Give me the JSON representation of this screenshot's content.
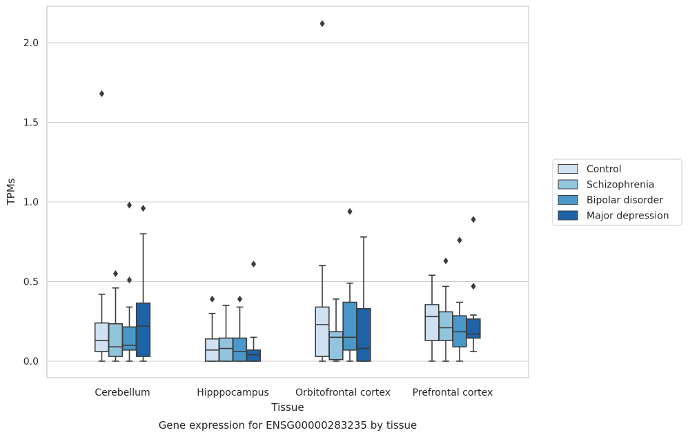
{
  "caption": "Gene expression for ENSG00000283235 by tissue",
  "chart_data": {
    "type": "box",
    "xlabel": "Tissue",
    "ylabel": "TPMs",
    "ylim": [
      -0.1,
      2.23
    ],
    "yticks": [
      0.0,
      0.5,
      1.0,
      1.5,
      2.0
    ],
    "ytick_labels": [
      "0.0",
      "0.5",
      "1.0",
      "1.5",
      "2.0"
    ],
    "grid": "horizontal",
    "legend_placement": "right",
    "categories": [
      "Cerebellum",
      "Hipppocampus",
      "Orbitofrontal cortex",
      "Prefrontal cortex"
    ],
    "series": [
      {
        "name": "Control",
        "color": "#cfe1f2",
        "boxes": [
          {
            "whislo": 0.0,
            "q1": 0.06,
            "med": 0.13,
            "q3": 0.24,
            "whishi": 0.42,
            "fliers": [
              1.68
            ]
          },
          {
            "whislo": 0.0,
            "q1": 0.0,
            "med": 0.07,
            "q3": 0.14,
            "whishi": 0.3,
            "fliers": [
              0.39
            ]
          },
          {
            "whislo": 0.0,
            "q1": 0.03,
            "med": 0.23,
            "q3": 0.34,
            "whishi": 0.6,
            "fliers": [
              2.12
            ]
          },
          {
            "whislo": 0.0,
            "q1": 0.13,
            "med": 0.28,
            "q3": 0.355,
            "whishi": 0.54,
            "fliers": []
          }
        ]
      },
      {
        "name": "Schizophrenia",
        "color": "#93c4de",
        "boxes": [
          {
            "whislo": 0.0,
            "q1": 0.03,
            "med": 0.09,
            "q3": 0.235,
            "whishi": 0.46,
            "fliers": [
              0.55
            ]
          },
          {
            "whislo": 0.0,
            "q1": 0.0,
            "med": 0.08,
            "q3": 0.145,
            "whishi": 0.35,
            "fliers": []
          },
          {
            "whislo": 0.0,
            "q1": 0.01,
            "med": 0.15,
            "q3": 0.185,
            "whishi": 0.39,
            "fliers": []
          },
          {
            "whislo": 0.0,
            "q1": 0.13,
            "med": 0.21,
            "q3": 0.31,
            "whishi": 0.47,
            "fliers": [
              0.63
            ]
          }
        ]
      },
      {
        "name": "Bipolar disorder",
        "color": "#4a98c9",
        "boxes": [
          {
            "whislo": 0.0,
            "q1": 0.07,
            "med": 0.1,
            "q3": 0.215,
            "whishi": 0.34,
            "fliers": [
              0.51,
              0.98
            ]
          },
          {
            "whislo": 0.0,
            "q1": 0.0,
            "med": 0.06,
            "q3": 0.145,
            "whishi": 0.34,
            "fliers": [
              0.39
            ]
          },
          {
            "whislo": 0.0,
            "q1": 0.07,
            "med": 0.15,
            "q3": 0.37,
            "whishi": 0.49,
            "fliers": [
              0.94
            ]
          },
          {
            "whislo": 0.0,
            "q1": 0.09,
            "med": 0.185,
            "q3": 0.285,
            "whishi": 0.37,
            "fliers": [
              0.76
            ]
          }
        ]
      },
      {
        "name": "Major depression",
        "color": "#1e63a8",
        "boxes": [
          {
            "whislo": 0.0,
            "q1": 0.03,
            "med": 0.22,
            "q3": 0.365,
            "whishi": 0.8,
            "fliers": [
              0.96
            ]
          },
          {
            "whislo": 0.0,
            "q1": 0.0,
            "med": 0.04,
            "q3": 0.07,
            "whishi": 0.15,
            "fliers": [
              0.61
            ]
          },
          {
            "whislo": 0.0,
            "q1": 0.0,
            "med": 0.08,
            "q3": 0.33,
            "whishi": 0.78,
            "fliers": []
          },
          {
            "whislo": 0.06,
            "q1": 0.145,
            "med": 0.17,
            "q3": 0.265,
            "whishi": 0.29,
            "fliers": [
              0.47,
              0.89
            ]
          }
        ]
      }
    ]
  }
}
